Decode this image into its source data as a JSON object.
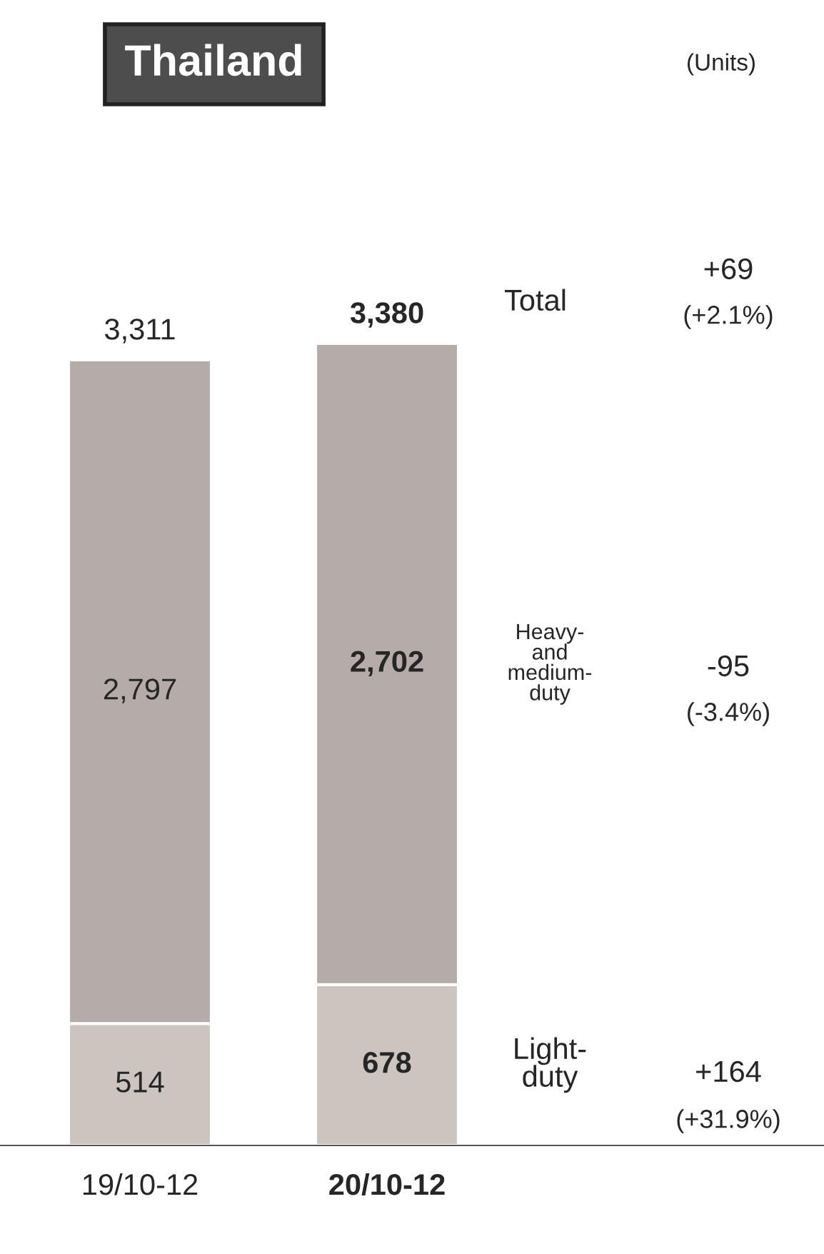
{
  "chart_data": {
    "type": "bar",
    "stacked": true,
    "title": "Thailand",
    "categories": [
      "19/10-12",
      "20/10-12"
    ],
    "series": [
      {
        "name": "Light-\nduty",
        "color": "#ccc4bf",
        "values": [
          514,
          678
        ],
        "value_labels": [
          "514",
          "678"
        ]
      },
      {
        "name": "Heavy-\nand\nmedium-\nduty",
        "color": "#b5aba8",
        "values": [
          2797,
          2702
        ],
        "value_labels": [
          "2,797",
          "2,702"
        ]
      }
    ],
    "totals": [
      "3,311",
      "3,380"
    ],
    "tick_labels": "x",
    "legend": false,
    "grid": false,
    "annotations": [
      "(Units)",
      "Total",
      "+69",
      "(+2.1%)",
      "-95",
      "(-3.4%)",
      "+164",
      "(+31.9%)"
    ]
  }
}
